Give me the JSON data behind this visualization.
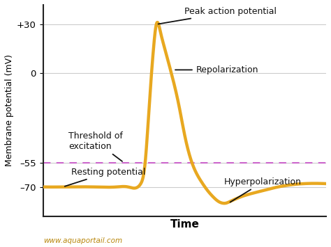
{
  "line_color": "#E8A820",
  "line_width": 3.2,
  "threshold_color": "#CC66CC",
  "threshold_value": -55,
  "resting_potential": -70,
  "peak_potential": 30,
  "hyperpolarization_min": -80,
  "ylabel": "Membrane potential (mV)",
  "xlabel": "Time",
  "yticks": [
    -70,
    -55,
    0,
    30
  ],
  "ytick_labels": [
    "–70",
    "–55",
    "0",
    "+30"
  ],
  "background_color": "#ffffff",
  "grid_color": "#cccccc",
  "annotation_color": "#111111",
  "watermark": "www.aquaportail.com",
  "watermark_color": "#B8860B",
  "ylim": [
    -88,
    42
  ],
  "xlim": [
    0,
    1
  ]
}
